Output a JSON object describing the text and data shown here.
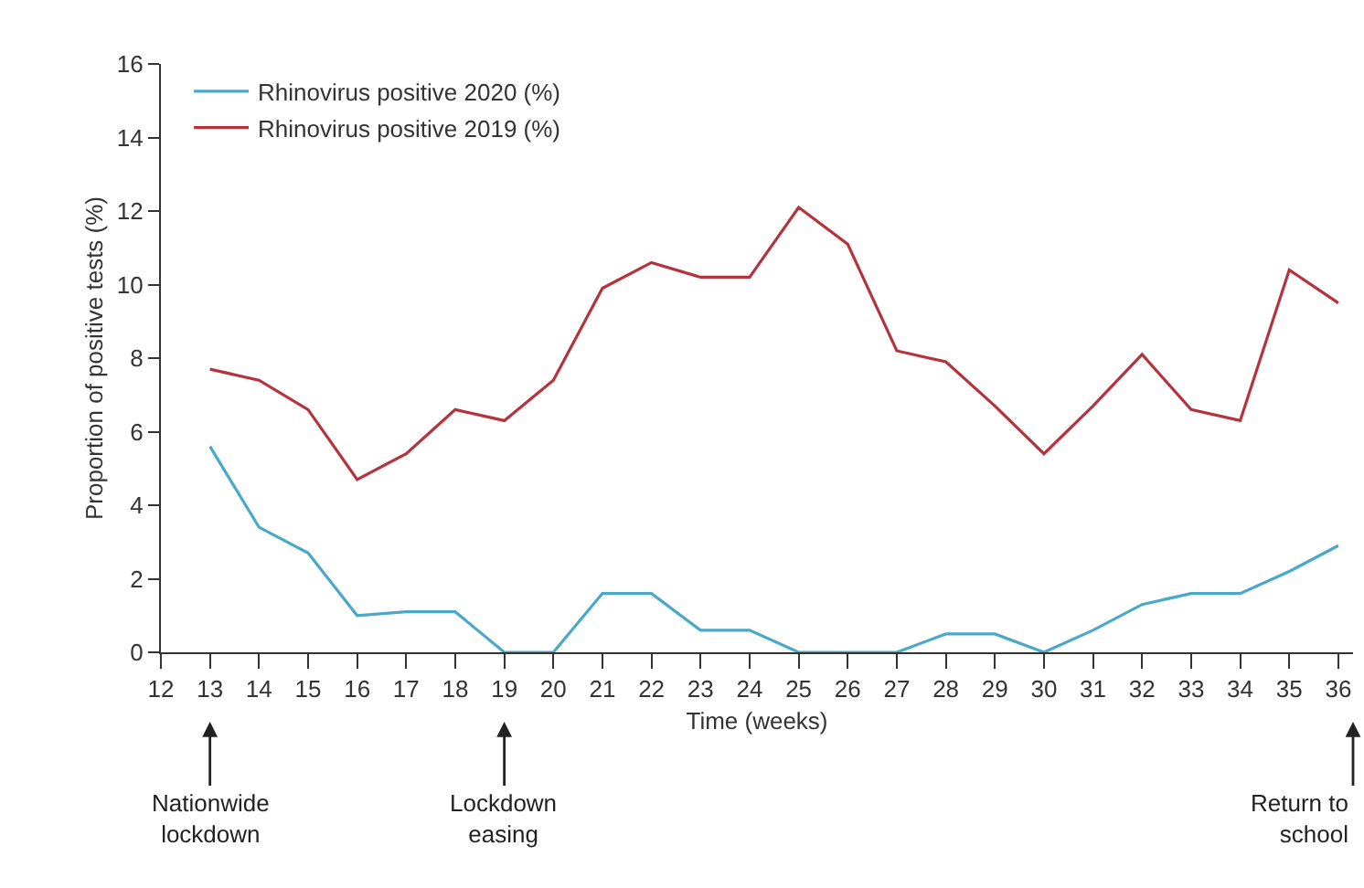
{
  "chart_data": {
    "type": "line",
    "xlabel": "Time (weeks)",
    "ylabel": "Proportion of positive tests (%)",
    "x": [
      13,
      14,
      15,
      16,
      17,
      18,
      19,
      20,
      21,
      22,
      23,
      24,
      25,
      26,
      27,
      28,
      29,
      30,
      31,
      32,
      33,
      34,
      35,
      36
    ],
    "series": [
      {
        "name": "Rhinovirus positive 2020 (%)",
        "color": "#4aa8c8",
        "values": [
          5.6,
          3.4,
          2.7,
          1.0,
          1.1,
          1.1,
          0,
          0,
          1.6,
          1.6,
          0.6,
          0.6,
          0,
          0,
          0,
          0.5,
          0.5,
          0,
          0.6,
          1.3,
          1.6,
          1.6,
          2.2,
          2.9
        ]
      },
      {
        "name": "Rhinovirus positive 2019 (%)",
        "color": "#b5333d",
        "values": [
          7.7,
          7.4,
          6.6,
          4.7,
          5.4,
          6.6,
          6.3,
          7.4,
          9.9,
          10.6,
          10.2,
          10.2,
          12.1,
          11.1,
          8.2,
          7.9,
          6.7,
          5.4,
          6.7,
          8.1,
          6.6,
          6.3,
          10.4,
          9.5
        ]
      }
    ],
    "xlim": [
      12,
      36.3
    ],
    "xticks": [
      12,
      13,
      14,
      15,
      16,
      17,
      18,
      19,
      20,
      21,
      22,
      23,
      24,
      25,
      26,
      27,
      28,
      29,
      30,
      31,
      32,
      33,
      34,
      35,
      36
    ],
    "ylim": [
      0,
      16
    ],
    "yticks": [
      0,
      2,
      4,
      6,
      8,
      10,
      12,
      14,
      16
    ],
    "annotations": [
      {
        "text": "Nationwide\nlockdown",
        "x": 13
      },
      {
        "text": "Lockdown\neasing",
        "x": 19
      },
      "Return to\nschool"
    ],
    "legend": "top left",
    "marker": "none",
    "line_style": "solid"
  }
}
